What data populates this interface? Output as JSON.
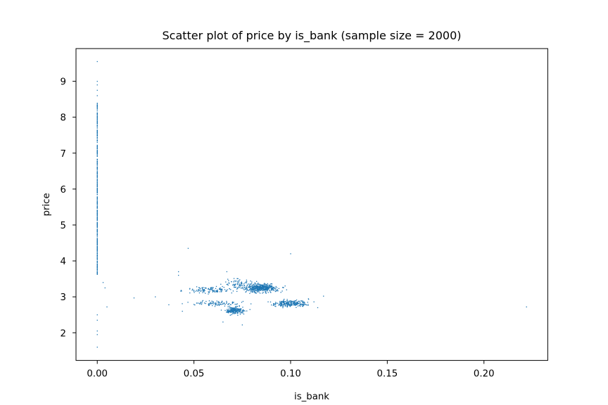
{
  "chart_data": {
    "type": "scatter",
    "title": "Scatter plot of price by is_bank (sample size = 2000)",
    "xlabel": "is_bank",
    "ylabel": "price",
    "xlim": [
      -0.011,
      0.233
    ],
    "ylim": [
      1.23,
      9.91
    ],
    "xticks": [
      0.0,
      0.05,
      0.1,
      0.15,
      0.2
    ],
    "xtick_labels": [
      "0.00",
      "0.05",
      "0.10",
      "0.15",
      "0.20"
    ],
    "yticks": [
      2,
      3,
      4,
      5,
      6,
      7,
      8,
      9
    ],
    "ytick_labels": [
      "2",
      "3",
      "4",
      "5",
      "6",
      "7",
      "8",
      "9"
    ],
    "grid": false,
    "marker_color": "#1f77b4",
    "sample_size": 2000,
    "clusters": [
      {
        "x_center": 0.0,
        "x_spread": 0.0,
        "y_center": 6.0,
        "y_spread": 2.4,
        "n": 380,
        "note_free": true
      },
      {
        "x_center": 0.085,
        "x_spread": 0.006,
        "y_center": 3.25,
        "y_spread": 0.08,
        "n": 420
      },
      {
        "x_center": 0.071,
        "x_spread": 0.0035,
        "y_center": 2.62,
        "y_spread": 0.07,
        "n": 200
      },
      {
        "x_center": 0.1,
        "x_spread": 0.006,
        "y_center": 2.82,
        "y_spread": 0.07,
        "n": 230
      },
      {
        "x_center": 0.058,
        "x_spread": 0.008,
        "y_center": 3.2,
        "y_spread": 0.06,
        "n": 120
      },
      {
        "x_center": 0.06,
        "x_spread": 0.01,
        "y_center": 2.82,
        "y_spread": 0.05,
        "n": 90
      },
      {
        "x_center": 0.074,
        "x_spread": 0.006,
        "y_center": 3.35,
        "y_spread": 0.1,
        "n": 90
      }
    ],
    "points": [
      {
        "x": 0.0,
        "y": 9.55
      },
      {
        "x": 0.0,
        "y": 9.0
      },
      {
        "x": 0.0,
        "y": 8.9
      },
      {
        "x": 0.0,
        "y": 8.75
      },
      {
        "x": 0.0,
        "y": 8.6
      },
      {
        "x": 0.0,
        "y": 2.05
      },
      {
        "x": 0.0,
        "y": 1.95
      },
      {
        "x": 0.0,
        "y": 1.6
      },
      {
        "x": 0.0,
        "y": 2.5
      },
      {
        "x": 0.0,
        "y": 2.35
      },
      {
        "x": 0.003,
        "y": 3.4
      },
      {
        "x": 0.004,
        "y": 3.25
      },
      {
        "x": 0.005,
        "y": 2.72
      },
      {
        "x": 0.019,
        "y": 2.97
      },
      {
        "x": 0.03,
        "y": 3.0
      },
      {
        "x": 0.037,
        "y": 2.78
      },
      {
        "x": 0.042,
        "y": 3.7
      },
      {
        "x": 0.042,
        "y": 3.6
      },
      {
        "x": 0.047,
        "y": 4.35
      },
      {
        "x": 0.044,
        "y": 2.6
      },
      {
        "x": 0.067,
        "y": 3.7
      },
      {
        "x": 0.065,
        "y": 2.3
      },
      {
        "x": 0.075,
        "y": 2.22
      },
      {
        "x": 0.1,
        "y": 4.2
      },
      {
        "x": 0.117,
        "y": 3.02
      },
      {
        "x": 0.114,
        "y": 2.7
      },
      {
        "x": 0.222,
        "y": 2.72
      }
    ]
  }
}
